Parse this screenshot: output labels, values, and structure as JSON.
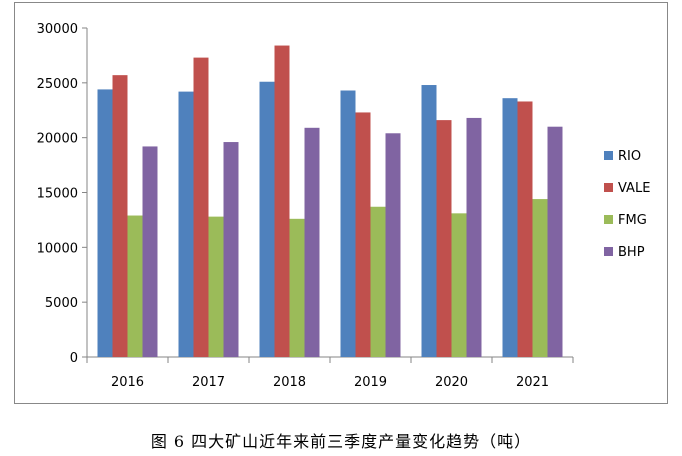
{
  "caption": "图 6  四大矿山近年来前三季度产量变化趋势（吨）",
  "chart_data": {
    "type": "bar",
    "categories": [
      "2016",
      "2017",
      "2018",
      "2019",
      "2020",
      "2021"
    ],
    "series": [
      {
        "name": "RIO",
        "color": "#4F81BD",
        "values": [
          24400,
          24200,
          25100,
          24300,
          24800,
          23600
        ]
      },
      {
        "name": "VALE",
        "color": "#C0504D",
        "values": [
          25700,
          27300,
          28400,
          22300,
          21600,
          23300
        ]
      },
      {
        "name": "FMG",
        "color": "#9BBB59",
        "values": [
          12900,
          12800,
          12600,
          13700,
          13100,
          14400
        ]
      },
      {
        "name": "BHP",
        "color": "#8064A2",
        "values": [
          19200,
          19600,
          20900,
          20400,
          21800,
          21000
        ]
      }
    ],
    "ylim": [
      0,
      30000
    ],
    "yticks": [
      "0",
      "5000",
      "10000",
      "15000",
      "20000",
      "25000",
      "30000"
    ],
    "grid": false,
    "legend": "right"
  }
}
